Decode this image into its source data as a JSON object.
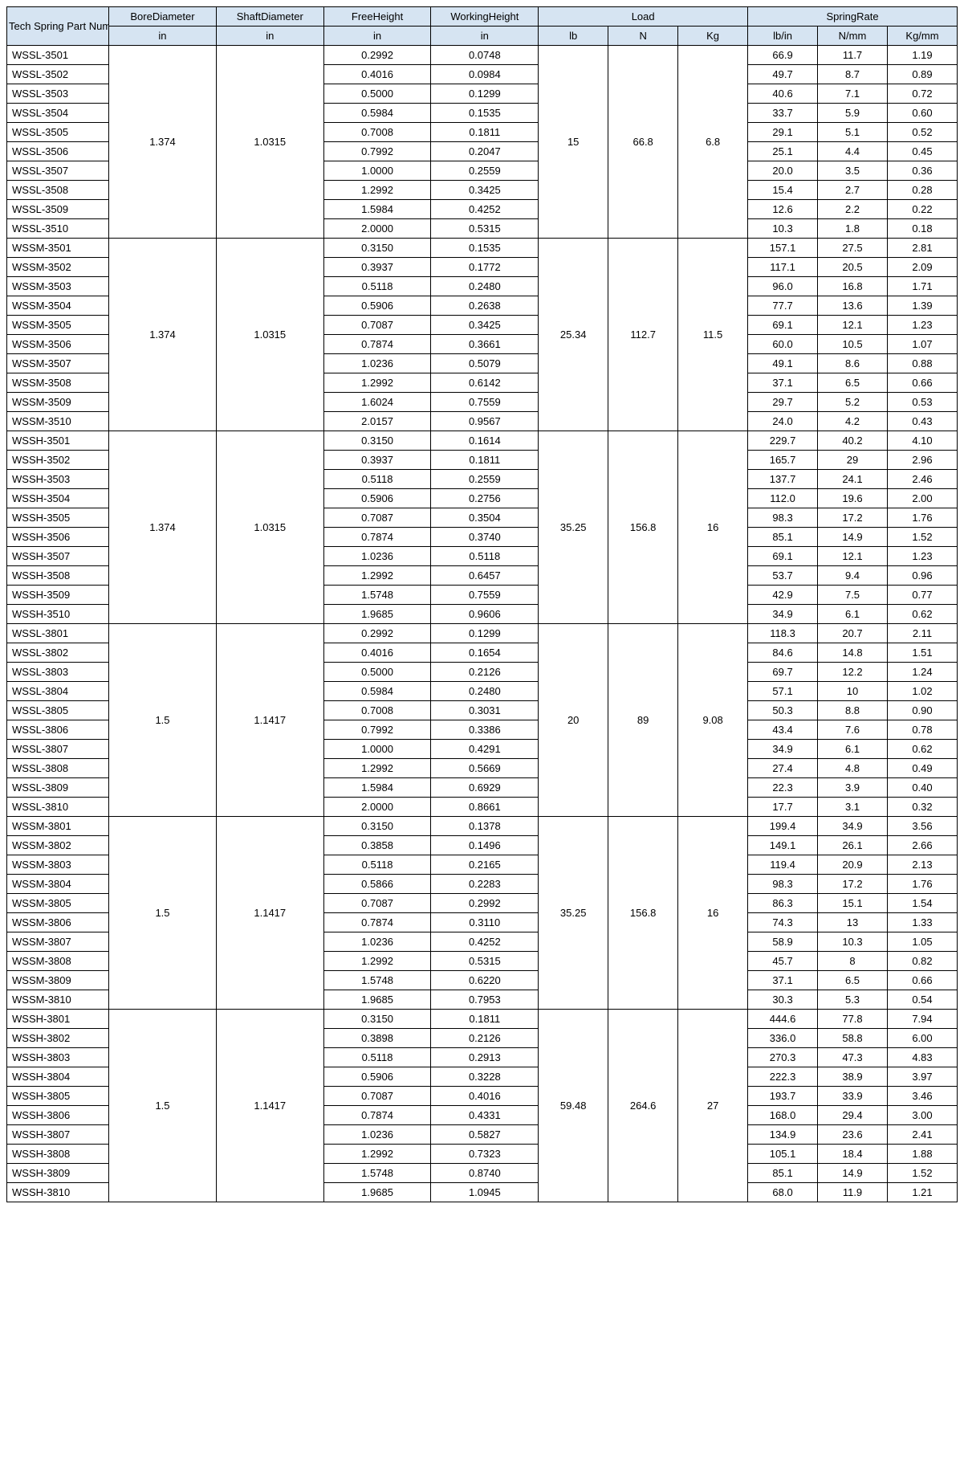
{
  "table": {
    "header_bg": "#d6e4f2",
    "border_color": "#000000",
    "font_size": 13,
    "columns": {
      "part": {
        "label": "Tech Spring Part Number",
        "unit": ""
      },
      "bore": {
        "label": "BoreDiameter",
        "unit": "in"
      },
      "shaft": {
        "label": "ShaftDiameter",
        "unit": "in"
      },
      "free": {
        "label": "FreeHeight",
        "unit": "in"
      },
      "work": {
        "label": "WorkingHeight",
        "unit": "in"
      },
      "load_group": {
        "label": "Load"
      },
      "lb": {
        "label": "lb"
      },
      "n": {
        "label": "N"
      },
      "kg": {
        "label": "Kg"
      },
      "rate_group": {
        "label": "SpringRate"
      },
      "lbin": {
        "label": "lb/in"
      },
      "nmm": {
        "label": "N/mm"
      },
      "kgmm": {
        "label": "Kg/mm"
      }
    },
    "groups": [
      {
        "bore": "1.374",
        "shaft": "1.0315",
        "load": {
          "lb": "15",
          "n": "66.8",
          "kg": "6.8"
        },
        "rows": [
          {
            "part": "WSSL-3501",
            "free": "0.2992",
            "work": "0.0748",
            "lbin": "66.9",
            "nmm": "11.7",
            "kgmm": "1.19"
          },
          {
            "part": "WSSL-3502",
            "free": "0.4016",
            "work": "0.0984",
            "lbin": "49.7",
            "nmm": "8.7",
            "kgmm": "0.89"
          },
          {
            "part": "WSSL-3503",
            "free": "0.5000",
            "work": "0.1299",
            "lbin": "40.6",
            "nmm": "7.1",
            "kgmm": "0.72"
          },
          {
            "part": "WSSL-3504",
            "free": "0.5984",
            "work": "0.1535",
            "lbin": "33.7",
            "nmm": "5.9",
            "kgmm": "0.60"
          },
          {
            "part": "WSSL-3505",
            "free": "0.7008",
            "work": "0.1811",
            "lbin": "29.1",
            "nmm": "5.1",
            "kgmm": "0.52"
          },
          {
            "part": "WSSL-3506",
            "free": "0.7992",
            "work": "0.2047",
            "lbin": "25.1",
            "nmm": "4.4",
            "kgmm": "0.45"
          },
          {
            "part": "WSSL-3507",
            "free": "1.0000",
            "work": "0.2559",
            "lbin": "20.0",
            "nmm": "3.5",
            "kgmm": "0.36"
          },
          {
            "part": "WSSL-3508",
            "free": "1.2992",
            "work": "0.3425",
            "lbin": "15.4",
            "nmm": "2.7",
            "kgmm": "0.28"
          },
          {
            "part": "WSSL-3509",
            "free": "1.5984",
            "work": "0.4252",
            "lbin": "12.6",
            "nmm": "2.2",
            "kgmm": "0.22"
          },
          {
            "part": "WSSL-3510",
            "free": "2.0000",
            "work": "0.5315",
            "lbin": "10.3",
            "nmm": "1.8",
            "kgmm": "0.18"
          }
        ]
      },
      {
        "bore": "1.374",
        "shaft": "1.0315",
        "load": {
          "lb": "25.34",
          "n": "112.7",
          "kg": "11.5"
        },
        "rows": [
          {
            "part": "WSSM-3501",
            "free": "0.3150",
            "work": "0.1535",
            "lbin": "157.1",
            "nmm": "27.5",
            "kgmm": "2.81"
          },
          {
            "part": "WSSM-3502",
            "free": "0.3937",
            "work": "0.1772",
            "lbin": "117.1",
            "nmm": "20.5",
            "kgmm": "2.09"
          },
          {
            "part": "WSSM-3503",
            "free": "0.5118",
            "work": "0.2480",
            "lbin": "96.0",
            "nmm": "16.8",
            "kgmm": "1.71"
          },
          {
            "part": "WSSM-3504",
            "free": "0.5906",
            "work": "0.2638",
            "lbin": "77.7",
            "nmm": "13.6",
            "kgmm": "1.39"
          },
          {
            "part": "WSSM-3505",
            "free": "0.7087",
            "work": "0.3425",
            "lbin": "69.1",
            "nmm": "12.1",
            "kgmm": "1.23"
          },
          {
            "part": "WSSM-3506",
            "free": "0.7874",
            "work": "0.3661",
            "lbin": "60.0",
            "nmm": "10.5",
            "kgmm": "1.07"
          },
          {
            "part": "WSSM-3507",
            "free": "1.0236",
            "work": "0.5079",
            "lbin": "49.1",
            "nmm": "8.6",
            "kgmm": "0.88"
          },
          {
            "part": "WSSM-3508",
            "free": "1.2992",
            "work": "0.6142",
            "lbin": "37.1",
            "nmm": "6.5",
            "kgmm": "0.66"
          },
          {
            "part": "WSSM-3509",
            "free": "1.6024",
            "work": "0.7559",
            "lbin": "29.7",
            "nmm": "5.2",
            "kgmm": "0.53"
          },
          {
            "part": "WSSM-3510",
            "free": "2.0157",
            "work": "0.9567",
            "lbin": "24.0",
            "nmm": "4.2",
            "kgmm": "0.43"
          }
        ]
      },
      {
        "bore": "1.374",
        "shaft": "1.0315",
        "load": {
          "lb": "35.25",
          "n": "156.8",
          "kg": "16"
        },
        "rows": [
          {
            "part": "WSSH-3501",
            "free": "0.3150",
            "work": "0.1614",
            "lbin": "229.7",
            "nmm": "40.2",
            "kgmm": "4.10"
          },
          {
            "part": "WSSH-3502",
            "free": "0.3937",
            "work": "0.1811",
            "lbin": "165.7",
            "nmm": "29",
            "kgmm": "2.96"
          },
          {
            "part": "WSSH-3503",
            "free": "0.5118",
            "work": "0.2559",
            "lbin": "137.7",
            "nmm": "24.1",
            "kgmm": "2.46"
          },
          {
            "part": "WSSH-3504",
            "free": "0.5906",
            "work": "0.2756",
            "lbin": "112.0",
            "nmm": "19.6",
            "kgmm": "2.00"
          },
          {
            "part": "WSSH-3505",
            "free": "0.7087",
            "work": "0.3504",
            "lbin": "98.3",
            "nmm": "17.2",
            "kgmm": "1.76"
          },
          {
            "part": "WSSH-3506",
            "free": "0.7874",
            "work": "0.3740",
            "lbin": "85.1",
            "nmm": "14.9",
            "kgmm": "1.52"
          },
          {
            "part": "WSSH-3507",
            "free": "1.0236",
            "work": "0.5118",
            "lbin": "69.1",
            "nmm": "12.1",
            "kgmm": "1.23"
          },
          {
            "part": "WSSH-3508",
            "free": "1.2992",
            "work": "0.6457",
            "lbin": "53.7",
            "nmm": "9.4",
            "kgmm": "0.96"
          },
          {
            "part": "WSSH-3509",
            "free": "1.5748",
            "work": "0.7559",
            "lbin": "42.9",
            "nmm": "7.5",
            "kgmm": "0.77"
          },
          {
            "part": "WSSH-3510",
            "free": "1.9685",
            "work": "0.9606",
            "lbin": "34.9",
            "nmm": "6.1",
            "kgmm": "0.62"
          }
        ]
      },
      {
        "bore": "1.5",
        "shaft": "1.1417",
        "load": {
          "lb": "20",
          "n": "89",
          "kg": "9.08"
        },
        "rows": [
          {
            "part": "WSSL-3801",
            "free": "0.2992",
            "work": "0.1299",
            "lbin": "118.3",
            "nmm": "20.7",
            "kgmm": "2.11"
          },
          {
            "part": "WSSL-3802",
            "free": "0.4016",
            "work": "0.1654",
            "lbin": "84.6",
            "nmm": "14.8",
            "kgmm": "1.51"
          },
          {
            "part": "WSSL-3803",
            "free": "0.5000",
            "work": "0.2126",
            "lbin": "69.7",
            "nmm": "12.2",
            "kgmm": "1.24"
          },
          {
            "part": "WSSL-3804",
            "free": "0.5984",
            "work": "0.2480",
            "lbin": "57.1",
            "nmm": "10",
            "kgmm": "1.02"
          },
          {
            "part": "WSSL-3805",
            "free": "0.7008",
            "work": "0.3031",
            "lbin": "50.3",
            "nmm": "8.8",
            "kgmm": "0.90"
          },
          {
            "part": "WSSL-3806",
            "free": "0.7992",
            "work": "0.3386",
            "lbin": "43.4",
            "nmm": "7.6",
            "kgmm": "0.78"
          },
          {
            "part": "WSSL-3807",
            "free": "1.0000",
            "work": "0.4291",
            "lbin": "34.9",
            "nmm": "6.1",
            "kgmm": "0.62"
          },
          {
            "part": "WSSL-3808",
            "free": "1.2992",
            "work": "0.5669",
            "lbin": "27.4",
            "nmm": "4.8",
            "kgmm": "0.49"
          },
          {
            "part": "WSSL-3809",
            "free": "1.5984",
            "work": "0.6929",
            "lbin": "22.3",
            "nmm": "3.9",
            "kgmm": "0.40"
          },
          {
            "part": "WSSL-3810",
            "free": "2.0000",
            "work": "0.8661",
            "lbin": "17.7",
            "nmm": "3.1",
            "kgmm": "0.32"
          }
        ]
      },
      {
        "bore": "1.5",
        "shaft": "1.1417",
        "load": {
          "lb": "35.25",
          "n": "156.8",
          "kg": "16"
        },
        "rows": [
          {
            "part": "WSSM-3801",
            "free": "0.3150",
            "work": "0.1378",
            "lbin": "199.4",
            "nmm": "34.9",
            "kgmm": "3.56"
          },
          {
            "part": "WSSM-3802",
            "free": "0.3858",
            "work": "0.1496",
            "lbin": "149.1",
            "nmm": "26.1",
            "kgmm": "2.66"
          },
          {
            "part": "WSSM-3803",
            "free": "0.5118",
            "work": "0.2165",
            "lbin": "119.4",
            "nmm": "20.9",
            "kgmm": "2.13"
          },
          {
            "part": "WSSM-3804",
            "free": "0.5866",
            "work": "0.2283",
            "lbin": "98.3",
            "nmm": "17.2",
            "kgmm": "1.76"
          },
          {
            "part": "WSSM-3805",
            "free": "0.7087",
            "work": "0.2992",
            "lbin": "86.3",
            "nmm": "15.1",
            "kgmm": "1.54"
          },
          {
            "part": "WSSM-3806",
            "free": "0.7874",
            "work": "0.3110",
            "lbin": "74.3",
            "nmm": "13",
            "kgmm": "1.33"
          },
          {
            "part": "WSSM-3807",
            "free": "1.0236",
            "work": "0.4252",
            "lbin": "58.9",
            "nmm": "10.3",
            "kgmm": "1.05"
          },
          {
            "part": "WSSM-3808",
            "free": "1.2992",
            "work": "0.5315",
            "lbin": "45.7",
            "nmm": "8",
            "kgmm": "0.82"
          },
          {
            "part": "WSSM-3809",
            "free": "1.5748",
            "work": "0.6220",
            "lbin": "37.1",
            "nmm": "6.5",
            "kgmm": "0.66"
          },
          {
            "part": "WSSM-3810",
            "free": "1.9685",
            "work": "0.7953",
            "lbin": "30.3",
            "nmm": "5.3",
            "kgmm": "0.54"
          }
        ]
      },
      {
        "bore": "1.5",
        "shaft": "1.1417",
        "load": {
          "lb": "59.48",
          "n": "264.6",
          "kg": "27"
        },
        "rows": [
          {
            "part": "WSSH-3801",
            "free": "0.3150",
            "work": "0.1811",
            "lbin": "444.6",
            "nmm": "77.8",
            "kgmm": "7.94"
          },
          {
            "part": "WSSH-3802",
            "free": "0.3898",
            "work": "0.2126",
            "lbin": "336.0",
            "nmm": "58.8",
            "kgmm": "6.00"
          },
          {
            "part": "WSSH-3803",
            "free": "0.5118",
            "work": "0.2913",
            "lbin": "270.3",
            "nmm": "47.3",
            "kgmm": "4.83"
          },
          {
            "part": "WSSH-3804",
            "free": "0.5906",
            "work": "0.3228",
            "lbin": "222.3",
            "nmm": "38.9",
            "kgmm": "3.97"
          },
          {
            "part": "WSSH-3805",
            "free": "0.7087",
            "work": "0.4016",
            "lbin": "193.7",
            "nmm": "33.9",
            "kgmm": "3.46"
          },
          {
            "part": "WSSH-3806",
            "free": "0.7874",
            "work": "0.4331",
            "lbin": "168.0",
            "nmm": "29.4",
            "kgmm": "3.00"
          },
          {
            "part": "WSSH-3807",
            "free": "1.0236",
            "work": "0.5827",
            "lbin": "134.9",
            "nmm": "23.6",
            "kgmm": "2.41"
          },
          {
            "part": "WSSH-3808",
            "free": "1.2992",
            "work": "0.7323",
            "lbin": "105.1",
            "nmm": "18.4",
            "kgmm": "1.88"
          },
          {
            "part": "WSSH-3809",
            "free": "1.5748",
            "work": "0.8740",
            "lbin": "85.1",
            "nmm": "14.9",
            "kgmm": "1.52"
          },
          {
            "part": "WSSH-3810",
            "free": "1.9685",
            "work": "1.0945",
            "lbin": "68.0",
            "nmm": "11.9",
            "kgmm": "1.21"
          }
        ]
      }
    ]
  }
}
